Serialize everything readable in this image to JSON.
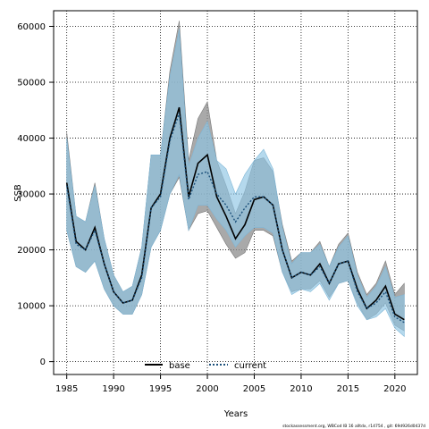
{
  "chart_data": {
    "type": "line",
    "xlabel": "Years",
    "ylabel": "SSB",
    "xlim": [
      1983.6,
      2022.4
    ],
    "ylim": [
      -2300,
      62800
    ],
    "x_ticks": [
      1985,
      1990,
      1995,
      2000,
      2005,
      2010,
      2015,
      2020
    ],
    "y_ticks": [
      0,
      10000,
      20000,
      30000,
      40000,
      50000,
      60000
    ],
    "grid": true,
    "legend_position": "bottom-center",
    "footnote": "stockassessment.org, WBCod IB 16 alltdx, r14754 , git: 69d926d0437d",
    "years": [
      1985,
      1986,
      1987,
      1988,
      1989,
      1990,
      1991,
      1992,
      1993,
      1994,
      1995,
      1996,
      1997,
      1998,
      1999,
      2000,
      2001,
      2002,
      2003,
      2004,
      2005,
      2006,
      2007,
      2008,
      2009,
      2010,
      2011,
      2012,
      2013,
      2014,
      2015,
      2016,
      2017,
      2018,
      2019,
      2020,
      2021
    ],
    "series": [
      {
        "name": "base",
        "color": "#000000",
        "band_color": "#8c8c8c",
        "values": [
          32000,
          21500,
          20000,
          24000,
          17500,
          12500,
          10500,
          11000,
          15500,
          27500,
          30000,
          40000,
          45500,
          29500,
          35500,
          37000,
          29500,
          26000,
          22000,
          24500,
          29000,
          29500,
          28000,
          20000,
          15000,
          16000,
          15500,
          17500,
          14000,
          17500,
          18000,
          13000,
          9500,
          11000,
          13500,
          8500,
          7500
        ],
        "lower": [
          23500,
          17000,
          16000,
          18000,
          13000,
          10000,
          8500,
          8500,
          12000,
          20500,
          23500,
          30000,
          33000,
          23500,
          26500,
          27000,
          24000,
          21000,
          18500,
          19500,
          23500,
          23500,
          22500,
          16000,
          12500,
          13000,
          13000,
          14500,
          11500,
          14000,
          14500,
          10500,
          7500,
          8500,
          10500,
          6500,
          5500
        ],
        "upper": [
          41000,
          26000,
          25000,
          32000,
          22000,
          15500,
          12500,
          13500,
          20500,
          37000,
          37000,
          52000,
          61000,
          36000,
          43500,
          46500,
          36000,
          31500,
          26500,
          30500,
          36000,
          36500,
          34000,
          24500,
          18000,
          19500,
          19500,
          21500,
          17000,
          21000,
          23000,
          16000,
          12000,
          14000,
          18000,
          12000,
          14000
        ]
      },
      {
        "name": "current",
        "color": "#1a4f7a",
        "band_color": "#8ec5e3",
        "values": [
          31500,
          21000,
          20000,
          23500,
          17500,
          12500,
          10500,
          11000,
          15000,
          27500,
          29500,
          39500,
          44500,
          29000,
          33500,
          34000,
          30000,
          28000,
          25000,
          27500,
          29500,
          29500,
          28000,
          20000,
          15000,
          16000,
          15500,
          17000,
          14000,
          17500,
          18000,
          12500,
          9500,
          10500,
          12500,
          8000,
          7000
        ],
        "lower": [
          23500,
          17000,
          16000,
          18000,
          13000,
          10000,
          8500,
          8500,
          12000,
          20500,
          23500,
          30000,
          33500,
          23500,
          28000,
          28000,
          25500,
          23500,
          20500,
          22500,
          24000,
          24000,
          23000,
          16000,
          12000,
          13000,
          12500,
          14000,
          11000,
          14000,
          14500,
          10000,
          7500,
          8000,
          9500,
          6000,
          4500
        ],
        "upper": [
          40000,
          26000,
          25000,
          31500,
          22000,
          15500,
          12500,
          13500,
          20500,
          37000,
          37000,
          51000,
          59500,
          35000,
          40000,
          43000,
          36000,
          34500,
          30000,
          33500,
          36000,
          38000,
          34500,
          24000,
          17500,
          19500,
          19500,
          21000,
          17000,
          20500,
          22500,
          15500,
          11500,
          13500,
          17000,
          11500,
          12000
        ]
      }
    ]
  }
}
